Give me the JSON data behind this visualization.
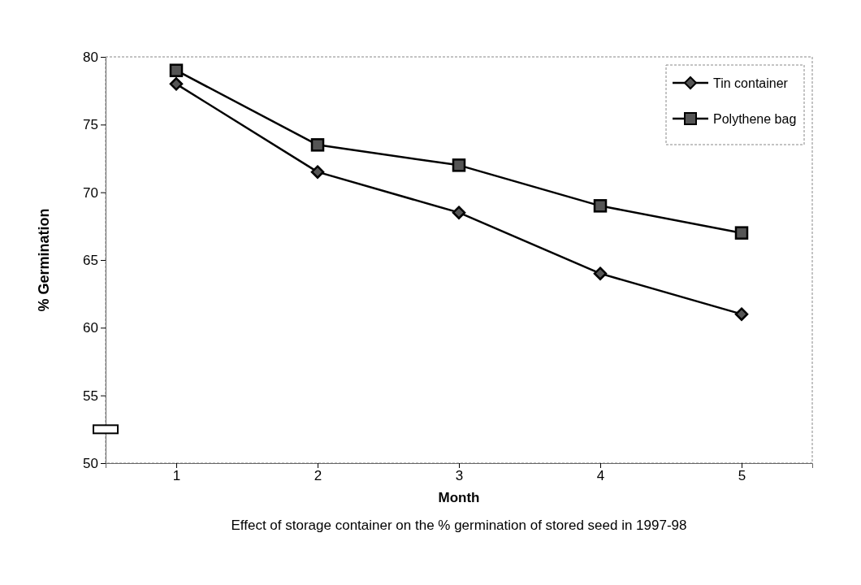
{
  "chart_data": {
    "type": "line",
    "xlabel": "Month",
    "ylabel": "% Germination",
    "annotations": [
      "Effect of storage container on the % germination of stored seed in 1997-98"
    ],
    "categories": [
      "1",
      "2",
      "3",
      "4",
      "5"
    ],
    "series": [
      {
        "name": "Tin container",
        "color": "#000000",
        "marker": "diamond",
        "values": [
          78,
          71.5,
          68.5,
          64,
          61
        ]
      },
      {
        "name": "Polythene bag",
        "color": "#000000",
        "marker": "square",
        "values": [
          79,
          73.5,
          72,
          69,
          67
        ]
      }
    ],
    "ylim": [
      50,
      80
    ],
    "yticks": [
      50,
      55,
      60,
      65,
      70,
      75,
      80
    ],
    "grid": false,
    "legend": "top right"
  }
}
